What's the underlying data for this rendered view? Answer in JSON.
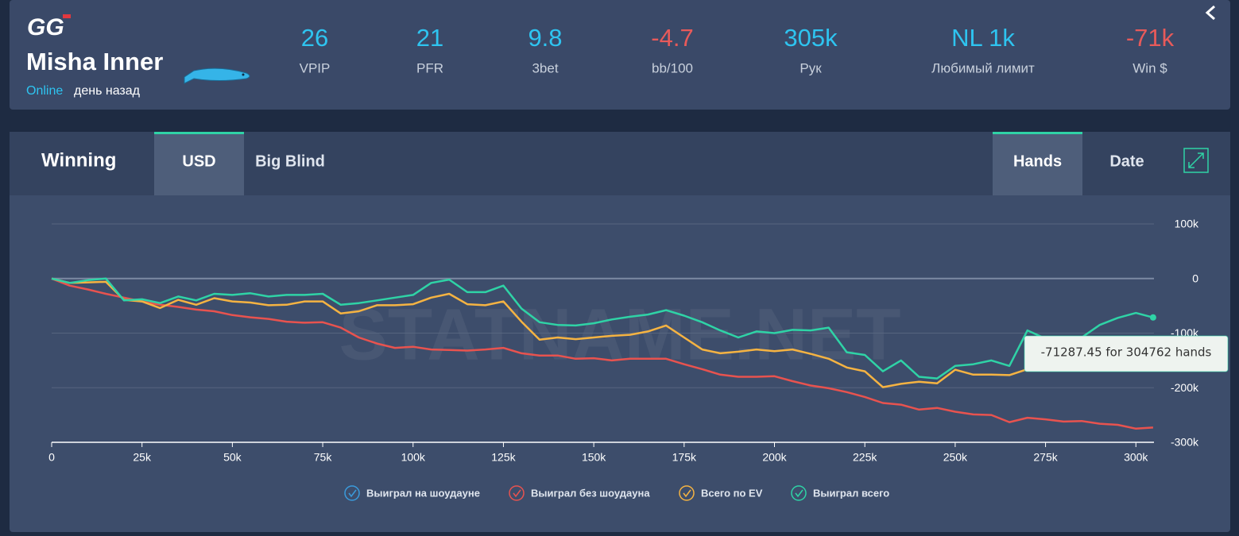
{
  "header": {
    "logo": "GG",
    "name": "Misha Inner",
    "status": "Online",
    "last_seen": "день назад",
    "stats": [
      {
        "value": "26",
        "label": "VPIP",
        "negative": false
      },
      {
        "value": "21",
        "label": "PFR",
        "negative": false
      },
      {
        "value": "9.8",
        "label": "3bet",
        "negative": false
      },
      {
        "value": "-4.7",
        "label": "bb/100",
        "negative": true
      },
      {
        "value": "305k",
        "label": "Рук",
        "negative": false
      },
      {
        "value": "NL 1k",
        "label": "Любимый лимит",
        "negative": false
      },
      {
        "value": "-71k",
        "label": "Win $",
        "negative": true
      }
    ]
  },
  "tabs": {
    "title": "Winning",
    "units": [
      "USD",
      "Big Blind"
    ],
    "active_unit": 0,
    "axes": [
      "Hands",
      "Date"
    ],
    "active_axis": 0
  },
  "chart_data": {
    "type": "line",
    "watermark": "STATNAME.NET",
    "tooltip": "-71287.45 for 304762 hands",
    "x": [
      0,
      5000,
      10000,
      15000,
      20000,
      25000,
      30000,
      35000,
      40000,
      45000,
      50000,
      55000,
      60000,
      65000,
      70000,
      75000,
      80000,
      85000,
      90000,
      95000,
      100000,
      105000,
      110000,
      115000,
      120000,
      125000,
      130000,
      135000,
      140000,
      145000,
      150000,
      155000,
      160000,
      165000,
      170000,
      175000,
      180000,
      185000,
      190000,
      195000,
      200000,
      205000,
      210000,
      215000,
      220000,
      225000,
      230000,
      235000,
      240000,
      245000,
      250000,
      255000,
      260000,
      265000,
      270000,
      275000,
      280000,
      285000,
      290000,
      295000,
      300000,
      304762
    ],
    "series": [
      {
        "name": "Выиграл на шоудауне",
        "color": "#3a9bdc",
        "values": [
          null,
          null,
          null,
          null,
          null,
          null,
          null,
          null,
          null,
          null,
          null,
          null,
          null,
          null,
          null,
          null,
          null,
          null,
          null,
          null,
          null,
          null,
          null,
          null,
          null,
          null,
          null,
          null,
          null,
          null,
          null,
          null,
          null,
          null,
          null,
          null,
          null,
          null,
          null,
          null,
          null,
          null,
          null,
          null,
          null,
          null,
          null,
          null,
          null,
          null,
          null,
          null,
          null,
          null,
          null,
          null,
          null,
          null,
          null,
          null,
          null,
          null
        ]
      },
      {
        "name": "Выиграл без шоудауна",
        "color": "#e8534f",
        "values": [
          0,
          -13000,
          -20000,
          -28000,
          -35000,
          -42000,
          -48000,
          -52000,
          -57000,
          -60000,
          -67000,
          -71000,
          -74000,
          -79000,
          -81000,
          -80000,
          -90000,
          -108000,
          -119000,
          -127000,
          -125000,
          -130000,
          -131000,
          -132000,
          -130000,
          -127000,
          -137000,
          -141000,
          -141000,
          -147000,
          -146000,
          -150000,
          -147000,
          -147000,
          -147000,
          -157000,
          -166000,
          -176000,
          -180000,
          -180000,
          -179000,
          -188000,
          -196000,
          -201000,
          -208000,
          -217000,
          -228000,
          -231000,
          -240000,
          -237000,
          -244000,
          -249000,
          -250000,
          -263000,
          -255000,
          -258000,
          -262000,
          -261000,
          -266000,
          -268000,
          -275000,
          -273000
        ]
      },
      {
        "name": "Всего по EV",
        "color": "#f5b342",
        "values": [
          0,
          -8000,
          -7000,
          -6000,
          -39000,
          -42000,
          -54000,
          -39000,
          -48000,
          -36000,
          -42000,
          -44000,
          -49000,
          -48000,
          -42000,
          -42000,
          -64000,
          -60000,
          -49000,
          -49000,
          -47000,
          -35000,
          -28000,
          -47000,
          -49000,
          -42000,
          -79000,
          -112000,
          -108000,
          -111000,
          -108000,
          -105000,
          -103000,
          -97000,
          -86000,
          -108000,
          -130000,
          -137000,
          -134000,
          -130000,
          -133000,
          -130000,
          -138000,
          -147000,
          -163000,
          -170000,
          -199000,
          -193000,
          -189000,
          -192000,
          -167000,
          -176000,
          -176000,
          -177000,
          -166000,
          -158000,
          -158000,
          -157000,
          -156000,
          -150000,
          -145000,
          -145000
        ]
      },
      {
        "name": "Выиграл всего",
        "color": "#2fd3a6",
        "values": [
          0,
          -8000,
          -3000,
          0,
          -40000,
          -38000,
          -45000,
          -33000,
          -40000,
          -28000,
          -30000,
          -27000,
          -33000,
          -30000,
          -30000,
          -28000,
          -48000,
          -45000,
          -40000,
          -35000,
          -30000,
          -8000,
          -2000,
          -25000,
          -25000,
          -13000,
          -55000,
          -80000,
          -85000,
          -86000,
          -82000,
          -75000,
          -70000,
          -66000,
          -58000,
          -68000,
          -80000,
          -95000,
          -108000,
          -97000,
          -100000,
          -94000,
          -95000,
          -90000,
          -135000,
          -140000,
          -170000,
          -150000,
          -180000,
          -183000,
          -160000,
          -157000,
          -150000,
          -160000,
          -95000,
          -110000,
          -110000,
          -108000,
          -85000,
          -72000,
          -63000,
          -71287.45
        ]
      }
    ],
    "xlim": [
      0,
      305000
    ],
    "ylim": [
      -300000,
      100000
    ],
    "xticks": [
      0,
      {
        "value": 25000,
        "label": "25k"
      },
      {
        "value": 50000,
        "label": "50k"
      },
      {
        "value": 75000,
        "label": "75k"
      },
      {
        "value": 100000,
        "label": "100k"
      },
      {
        "value": 125000,
        "label": "125k"
      },
      {
        "value": 150000,
        "label": "150k"
      },
      {
        "value": 175000,
        "label": "175k"
      },
      {
        "value": 200000,
        "label": "200k"
      },
      {
        "value": 225000,
        "label": "225k"
      },
      {
        "value": 250000,
        "label": "250k"
      },
      {
        "value": 275000,
        "label": "275k"
      },
      {
        "value": 300000,
        "label": "300k"
      }
    ],
    "yticks": [
      {
        "value": 100000,
        "label": "100k"
      },
      0,
      {
        "value": -100000,
        "label": "-100k"
      },
      {
        "value": -200000,
        "label": "-200k"
      },
      {
        "value": -300000,
        "label": "-300k"
      }
    ],
    "grid": true
  }
}
